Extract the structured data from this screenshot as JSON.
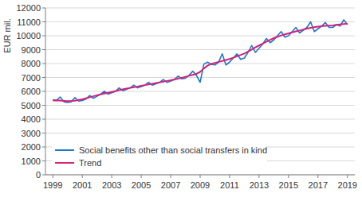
{
  "chart_data": {
    "type": "line",
    "y_label": "EUR mil.",
    "x": [
      1999,
      1999.25,
      1999.5,
      1999.75,
      2000,
      2000.25,
      2000.5,
      2000.75,
      2001,
      2001.25,
      2001.5,
      2001.75,
      2002,
      2002.25,
      2002.5,
      2002.75,
      2003,
      2003.25,
      2003.5,
      2003.75,
      2004,
      2004.25,
      2004.5,
      2004.75,
      2005,
      2005.25,
      2005.5,
      2005.75,
      2006,
      2006.25,
      2006.5,
      2006.75,
      2007,
      2007.25,
      2007.5,
      2007.75,
      2008,
      2008.25,
      2008.5,
      2008.75,
      2009,
      2009.25,
      2009.5,
      2009.75,
      2010,
      2010.25,
      2010.5,
      2010.75,
      2011,
      2011.25,
      2011.5,
      2011.75,
      2012,
      2012.25,
      2012.5,
      2012.75,
      2013,
      2013.25,
      2013.5,
      2013.75,
      2014,
      2014.25,
      2014.5,
      2014.75,
      2015,
      2015.25,
      2015.5,
      2015.75,
      2016,
      2016.25,
      2016.5,
      2016.75,
      2017,
      2017.25,
      2017.5,
      2017.75,
      2018,
      2018.25,
      2018.5,
      2018.75,
      2019
    ],
    "series": [
      {
        "name": "Social benefits other than social transfers in kind",
        "color": "#1f78c8",
        "values": [
          5400,
          5350,
          5600,
          5250,
          5200,
          5250,
          5550,
          5300,
          5350,
          5450,
          5700,
          5500,
          5650,
          5800,
          6000,
          5800,
          5900,
          6000,
          6250,
          6050,
          6150,
          6250,
          6450,
          6250,
          6350,
          6450,
          6650,
          6450,
          6550,
          6650,
          6850,
          6650,
          6750,
          6850,
          7100,
          6900,
          6950,
          7150,
          7450,
          7150,
          6650,
          7950,
          8100,
          7950,
          7900,
          8100,
          8700,
          7900,
          8100,
          8400,
          8700,
          8300,
          8400,
          8800,
          9300,
          8800,
          9100,
          9400,
          9800,
          9500,
          9700,
          10000,
          10300,
          9900,
          10000,
          10300,
          10600,
          10200,
          10400,
          10600,
          11000,
          10300,
          10500,
          10700,
          10950,
          10600,
          10600,
          10800,
          10700,
          11150,
          10800
        ]
      },
      {
        "name": "Trend",
        "color": "#d4217b",
        "values": [
          5350,
          5360,
          5340,
          5320,
          5300,
          5310,
          5330,
          5380,
          5430,
          5500,
          5580,
          5650,
          5720,
          5780,
          5840,
          5900,
          5960,
          6020,
          6080,
          6140,
          6200,
          6250,
          6300,
          6350,
          6400,
          6450,
          6500,
          6550,
          6600,
          6650,
          6700,
          6750,
          6800,
          6860,
          6920,
          6980,
          7050,
          7120,
          7190,
          7260,
          7400,
          7650,
          7850,
          7980,
          8050,
          8120,
          8190,
          8260,
          8330,
          8420,
          8520,
          8620,
          8720,
          8860,
          9010,
          9160,
          9300,
          9440,
          9580,
          9710,
          9830,
          9930,
          10020,
          10100,
          10170,
          10240,
          10310,
          10380,
          10450,
          10510,
          10570,
          10620,
          10660,
          10690,
          10710,
          10730,
          10750,
          10780,
          10810,
          10840,
          10870
        ]
      }
    ],
    "xlim": [
      1998.5,
      2019.5
    ],
    "xticks": [
      1999,
      2001,
      2003,
      2005,
      2007,
      2009,
      2011,
      2013,
      2015,
      2017,
      2019
    ],
    "ylim": [
      0,
      12000
    ],
    "yticks": [
      0,
      1000,
      2000,
      3000,
      4000,
      5000,
      6000,
      7000,
      8000,
      9000,
      10000,
      11000,
      12000
    ],
    "grid": true,
    "legend": "lower left"
  }
}
